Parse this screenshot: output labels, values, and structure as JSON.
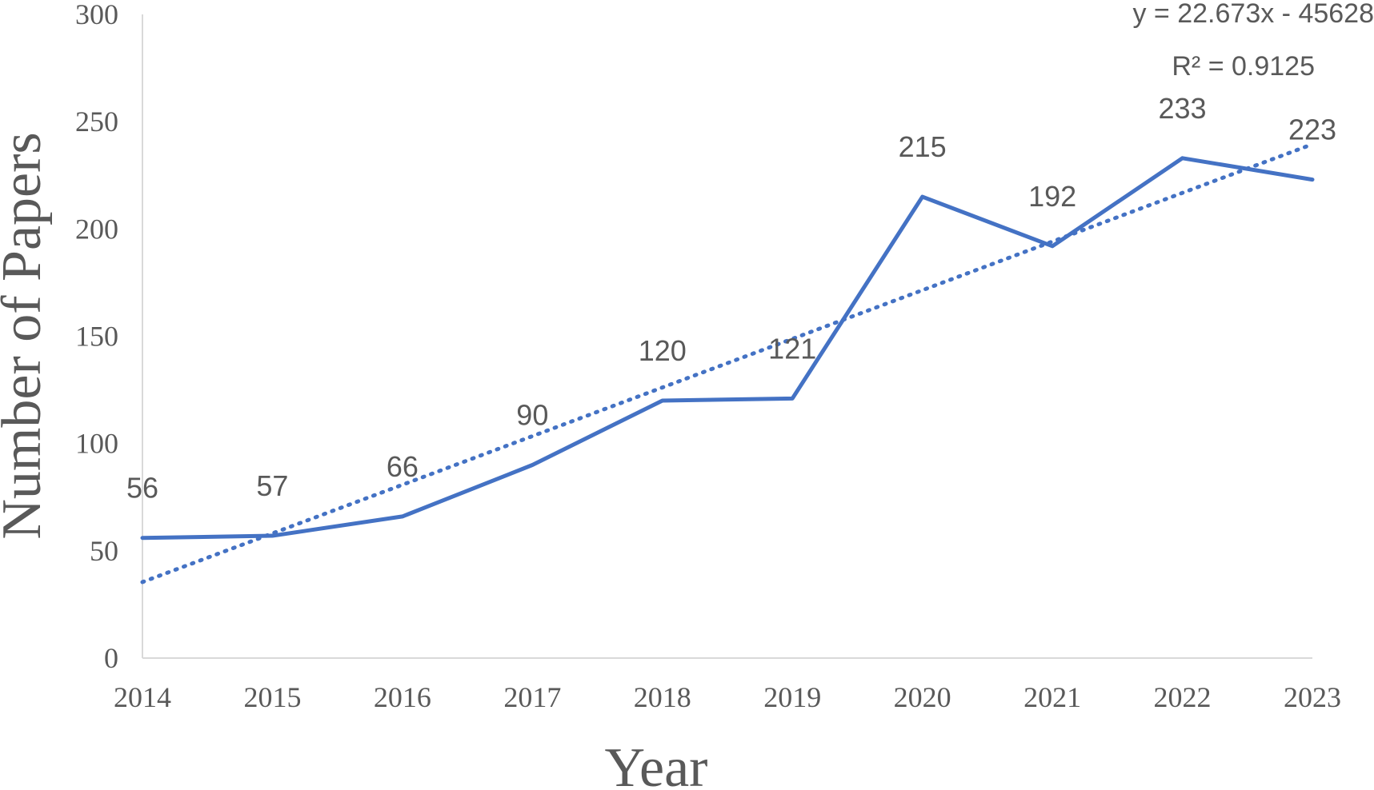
{
  "chart_data": {
    "type": "line",
    "x": [
      "2014",
      "2015",
      "2016",
      "2017",
      "2018",
      "2019",
      "2020",
      "2021",
      "2022",
      "2023"
    ],
    "series": [
      {
        "values": [
          56,
          57,
          66,
          90,
          120,
          121,
          215,
          192,
          233,
          223
        ],
        "color": "#4472C4",
        "data_labels": [
          "56",
          "57",
          "66",
          "90",
          "120",
          "121",
          "215",
          "192",
          "233",
          "223"
        ]
      }
    ],
    "trendline": {
      "type": "linear",
      "slope": 22.673,
      "intercept": -45628,
      "style": "dotted",
      "color": "#4472C4",
      "equation_label": "y = 22.673x - 45628",
      "r2_label": "R² = 0.9125"
    },
    "xlabel": "Year",
    "ylabel": "Number of Papers",
    "ylim": [
      0,
      300
    ],
    "yticks": [
      "0",
      "50",
      "100",
      "150",
      "200",
      "250",
      "300"
    ],
    "grid": false,
    "legend": "none"
  }
}
